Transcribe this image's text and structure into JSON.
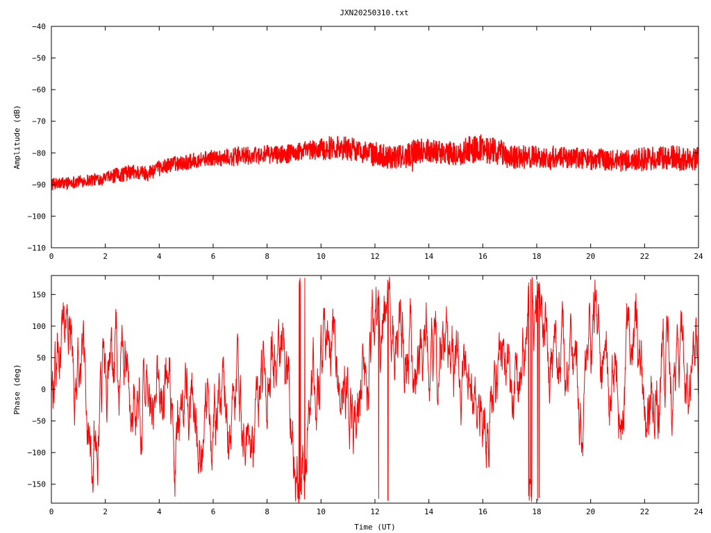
{
  "chart_data": [
    {
      "type": "line",
      "title": "JXN20250310.txt",
      "xlabel": "",
      "ylabel": "Amplitude (dB)",
      "xlim": [
        0,
        24
      ],
      "ylim": [
        -110,
        -40
      ],
      "xticks": [
        0,
        2,
        4,
        6,
        8,
        10,
        12,
        14,
        16,
        18,
        20,
        22,
        24
      ],
      "yticks": [
        -110,
        -100,
        -90,
        -80,
        -70,
        -60,
        -50,
        -40
      ],
      "xtick_labels": [
        "0",
        "2",
        "4",
        "6",
        "8",
        "10",
        "12",
        "14",
        "16",
        "18",
        "20",
        "22",
        "24"
      ],
      "ytick_labels": [
        "−110",
        "−100",
        "−90",
        "−80",
        "−70",
        "−60",
        "−50",
        "−40"
      ],
      "grid": false,
      "series": [
        {
          "color": "#ff0000",
          "x": [
            0,
            0.5,
            1,
            1.5,
            2,
            2.5,
            3,
            3.5,
            4,
            4.5,
            5,
            5.5,
            6,
            6.5,
            7,
            7.5,
            8,
            8.5,
            9,
            9.5,
            10,
            10.5,
            11,
            11.5,
            12,
            12.5,
            13,
            13.5,
            14,
            14.5,
            15,
            15.5,
            16,
            16.5,
            17,
            17.5,
            18,
            18.5,
            19,
            19.5,
            20,
            20.5,
            21,
            21.5,
            22,
            22.5,
            23,
            23.5,
            24
          ],
          "y": [
            -90,
            -89.5,
            -89,
            -88.5,
            -88,
            -87,
            -86,
            -86.5,
            -85,
            -83.5,
            -83,
            -82,
            -81.5,
            -81.5,
            -81,
            -81,
            -80.5,
            -80.5,
            -80,
            -79.5,
            -79,
            -78,
            -78.5,
            -79.5,
            -80.5,
            -81,
            -81.5,
            -79.5,
            -79,
            -80,
            -80.5,
            -79,
            -78.5,
            -79.5,
            -81,
            -81.5,
            -81,
            -82,
            -81.5,
            -81.5,
            -82,
            -82,
            -82.5,
            -82.5,
            -82,
            -82,
            -81.5,
            -82,
            -82
          ],
          "noise_amplitude": [
            2,
            2,
            2,
            2,
            2,
            2.5,
            2.5,
            2.5,
            2.5,
            2.5,
            2.5,
            2.5,
            2.5,
            3,
            3,
            3,
            3,
            3,
            3,
            3.5,
            3.5,
            4,
            4,
            3.5,
            4,
            4,
            4,
            4,
            4,
            4,
            4,
            4.5,
            4.5,
            4.5,
            4,
            4,
            3.5,
            3.5,
            3.5,
            3.5,
            3.5,
            3.5,
            3.5,
            3.5,
            4,
            4,
            4,
            4,
            4
          ]
        }
      ]
    },
    {
      "type": "line",
      "title": "",
      "xlabel": "Time (UT)",
      "ylabel": "Phase (deg)",
      "xlim": [
        0,
        24
      ],
      "ylim": [
        -180,
        180
      ],
      "xticks": [
        0,
        2,
        4,
        6,
        8,
        10,
        12,
        14,
        16,
        18,
        20,
        22,
        24
      ],
      "yticks": [
        -150,
        -100,
        -50,
        0,
        50,
        100,
        150
      ],
      "xtick_labels": [
        "0",
        "2",
        "4",
        "6",
        "8",
        "10",
        "12",
        "14",
        "16",
        "18",
        "20",
        "22",
        "24"
      ],
      "ytick_labels": [
        "−150",
        "−100",
        "−50",
        "0",
        "50",
        "100",
        "150"
      ],
      "grid": false,
      "series": [
        {
          "color": "#ff0000",
          "x": [
            0,
            0.5,
            1,
            1.5,
            2,
            2.5,
            3,
            3.5,
            4,
            4.5,
            5,
            5.5,
            6,
            6.5,
            7,
            7.5,
            8,
            8.5,
            9,
            9.5,
            10,
            10.5,
            11,
            11.5,
            12,
            12.5,
            13,
            13.5,
            14,
            14.5,
            15,
            15.5,
            16,
            16.5,
            17,
            17.5,
            18,
            18.5,
            19,
            19.5,
            20,
            20.5,
            21,
            21.5,
            22,
            22.5,
            23,
            23.5,
            24
          ],
          "y": [
            0,
            20,
            60,
            -40,
            -20,
            40,
            20,
            -30,
            10,
            -80,
            20,
            -60,
            -40,
            10,
            0,
            -50,
            30,
            -20,
            -110,
            -50,
            0,
            40,
            -30,
            60,
            100,
            80,
            20,
            60,
            50,
            -40,
            10,
            -20,
            -40,
            40,
            -30,
            100,
            80,
            20,
            60,
            40,
            100,
            -20,
            60,
            40,
            -120,
            80,
            40,
            -20,
            60
          ],
          "wrap": [
            -180,
            180
          ]
        }
      ]
    }
  ]
}
